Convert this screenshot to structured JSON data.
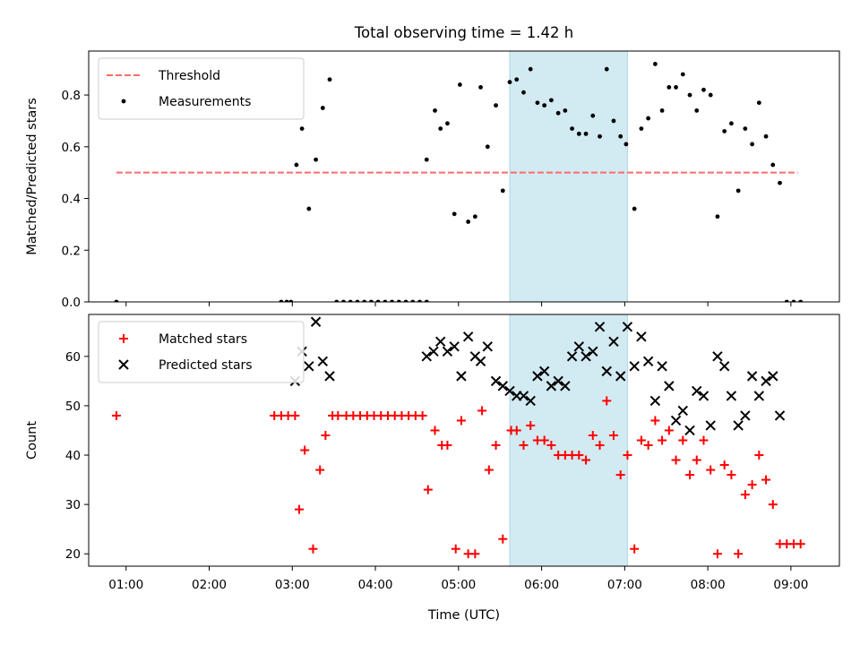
{
  "chart_data": {
    "type": "scatter",
    "title": "Total observing time = 1.42 h",
    "xlabel": "Time (UTC)",
    "xlim": [
      "00:33",
      "09:35"
    ],
    "xticks": [
      "01:00",
      "02:00",
      "03:00",
      "04:00",
      "05:00",
      "06:00",
      "07:00",
      "08:00",
      "09:00"
    ],
    "highlight_span": {
      "start": "05:37",
      "end": "07:02",
      "color": "#add8e6"
    },
    "panels": [
      {
        "ylabel": "Matched/Predicted stars",
        "ylim": [
          0,
          0.97
        ],
        "yticks": [
          "0.0",
          "0.2",
          "0.4",
          "0.6",
          "0.8"
        ],
        "legend": {
          "position": "upper-left",
          "entries": [
            "Threshold",
            "Measurements"
          ]
        },
        "threshold": {
          "name": "Threshold",
          "value": 0.5,
          "start": "00:53",
          "end": "09:05",
          "color": "#ff6b6b"
        },
        "series": [
          {
            "name": "Measurements",
            "marker": "dot",
            "color": "#000000",
            "points": [
              [
                "00:53",
                0
              ],
              [
                "02:52",
                0
              ],
              [
                "02:56",
                0
              ],
              [
                "02:59",
                0
              ],
              [
                "03:03",
                0.53
              ],
              [
                "03:07",
                0.67
              ],
              [
                "03:12",
                0.36
              ],
              [
                "03:17",
                0.55
              ],
              [
                "03:22",
                0.75
              ],
              [
                "03:27",
                0.86
              ],
              [
                "03:32",
                0
              ],
              [
                "03:37",
                0
              ],
              [
                "03:42",
                0
              ],
              [
                "03:47",
                0
              ],
              [
                "03:52",
                0
              ],
              [
                "03:57",
                0
              ],
              [
                "04:02",
                0
              ],
              [
                "04:07",
                0
              ],
              [
                "04:12",
                0
              ],
              [
                "04:17",
                0
              ],
              [
                "04:22",
                0
              ],
              [
                "04:27",
                0
              ],
              [
                "04:32",
                0
              ],
              [
                "04:37",
                0
              ],
              [
                "04:37",
                0.55
              ],
              [
                "04:43",
                0.74
              ],
              [
                "04:47",
                0.67
              ],
              [
                "04:52",
                0.69
              ],
              [
                "04:57",
                0.34
              ],
              [
                "05:01",
                0.84
              ],
              [
                "05:07",
                0.31
              ],
              [
                "05:12",
                0.33
              ],
              [
                "05:16",
                0.83
              ],
              [
                "05:21",
                0.6
              ],
              [
                "05:27",
                0.76
              ],
              [
                "05:32",
                0.43
              ],
              [
                "05:37",
                0.85
              ],
              [
                "05:42",
                0.86
              ],
              [
                "05:47",
                0.81
              ],
              [
                "05:52",
                0.9
              ],
              [
                "05:57",
                0.77
              ],
              [
                "06:02",
                0.76
              ],
              [
                "06:07",
                0.78
              ],
              [
                "06:12",
                0.73
              ],
              [
                "06:17",
                0.74
              ],
              [
                "06:22",
                0.67
              ],
              [
                "06:27",
                0.65
              ],
              [
                "06:32",
                0.65
              ],
              [
                "06:37",
                0.72
              ],
              [
                "06:42",
                0.64
              ],
              [
                "06:47",
                0.9
              ],
              [
                "06:52",
                0.7
              ],
              [
                "06:57",
                0.64
              ],
              [
                "07:01",
                0.61
              ],
              [
                "07:07",
                0.36
              ],
              [
                "07:12",
                0.67
              ],
              [
                "07:17",
                0.71
              ],
              [
                "07:22",
                0.92
              ],
              [
                "07:27",
                0.74
              ],
              [
                "07:32",
                0.83
              ],
              [
                "07:37",
                0.83
              ],
              [
                "07:42",
                0.88
              ],
              [
                "07:47",
                0.8
              ],
              [
                "07:52",
                0.74
              ],
              [
                "07:57",
                0.82
              ],
              [
                "08:02",
                0.8
              ],
              [
                "08:07",
                0.33
              ],
              [
                "08:12",
                0.66
              ],
              [
                "08:17",
                0.69
              ],
              [
                "08:22",
                0.43
              ],
              [
                "08:27",
                0.67
              ],
              [
                "08:32",
                0.61
              ],
              [
                "08:37",
                0.77
              ],
              [
                "08:42",
                0.64
              ],
              [
                "08:47",
                0.53
              ],
              [
                "08:52",
                0.46
              ],
              [
                "08:57",
                0
              ],
              [
                "09:02",
                0
              ],
              [
                "09:07",
                0
              ]
            ]
          }
        ]
      },
      {
        "ylabel": "Count",
        "ylim": [
          17.5,
          68.5
        ],
        "yticks": [
          "20",
          "30",
          "40",
          "50",
          "60"
        ],
        "legend": {
          "position": "upper-left",
          "entries": [
            "Matched stars",
            "Predicted stars"
          ]
        },
        "series": [
          {
            "name": "Matched stars",
            "marker": "plus",
            "color": "#ff0000",
            "points": [
              [
                "00:53",
                48
              ],
              [
                "02:47",
                48
              ],
              [
                "02:52",
                48
              ],
              [
                "02:57",
                48
              ],
              [
                "03:02",
                48
              ],
              [
                "03:05",
                29
              ],
              [
                "03:09",
                41
              ],
              [
                "03:15",
                21
              ],
              [
                "03:20",
                37
              ],
              [
                "03:24",
                44
              ],
              [
                "03:29",
                48
              ],
              [
                "03:33",
                48
              ],
              [
                "03:39",
                48
              ],
              [
                "03:44",
                48
              ],
              [
                "03:49",
                48
              ],
              [
                "03:54",
                48
              ],
              [
                "03:59",
                48
              ],
              [
                "04:04",
                48
              ],
              [
                "04:09",
                48
              ],
              [
                "04:14",
                48
              ],
              [
                "04:19",
                48
              ],
              [
                "04:24",
                48
              ],
              [
                "04:29",
                48
              ],
              [
                "04:34",
                48
              ],
              [
                "04:38",
                33
              ],
              [
                "04:43",
                45
              ],
              [
                "04:48",
                42
              ],
              [
                "04:52",
                42
              ],
              [
                "04:58",
                21
              ],
              [
                "05:02",
                47
              ],
              [
                "05:07",
                20
              ],
              [
                "05:12",
                20
              ],
              [
                "05:17",
                49
              ],
              [
                "05:22",
                37
              ],
              [
                "05:27",
                42
              ],
              [
                "05:32",
                23
              ],
              [
                "05:38",
                45
              ],
              [
                "05:42",
                45
              ],
              [
                "05:47",
                42
              ],
              [
                "05:52",
                46
              ],
              [
                "05:57",
                43
              ],
              [
                "06:02",
                43
              ],
              [
                "06:07",
                42
              ],
              [
                "06:12",
                40
              ],
              [
                "06:17",
                40
              ],
              [
                "06:22",
                40
              ],
              [
                "06:27",
                40
              ],
              [
                "06:32",
                39
              ],
              [
                "06:37",
                44
              ],
              [
                "06:42",
                42
              ],
              [
                "06:47",
                51
              ],
              [
                "06:52",
                44
              ],
              [
                "06:57",
                36
              ],
              [
                "07:02",
                40
              ],
              [
                "07:07",
                21
              ],
              [
                "07:12",
                43
              ],
              [
                "07:17",
                42
              ],
              [
                "07:22",
                47
              ],
              [
                "07:27",
                43
              ],
              [
                "07:32",
                45
              ],
              [
                "07:37",
                39
              ],
              [
                "07:42",
                43
              ],
              [
                "07:47",
                36
              ],
              [
                "07:52",
                39
              ],
              [
                "07:57",
                43
              ],
              [
                "08:02",
                37
              ],
              [
                "08:07",
                20
              ],
              [
                "08:12",
                38
              ],
              [
                "08:17",
                36
              ],
              [
                "08:22",
                20
              ],
              [
                "08:27",
                32
              ],
              [
                "08:32",
                34
              ],
              [
                "08:37",
                40
              ],
              [
                "08:42",
                35
              ],
              [
                "08:47",
                30
              ],
              [
                "08:52",
                22
              ],
              [
                "08:57",
                22
              ],
              [
                "09:02",
                22
              ],
              [
                "09:07",
                22
              ]
            ]
          },
          {
            "name": "Predicted stars",
            "marker": "x",
            "color": "#000000",
            "points": [
              [
                "03:02",
                55
              ],
              [
                "03:07",
                61
              ],
              [
                "03:12",
                58
              ],
              [
                "03:17",
                67
              ],
              [
                "03:22",
                59
              ],
              [
                "03:27",
                56
              ],
              [
                "04:37",
                60
              ],
              [
                "04:42",
                61
              ],
              [
                "04:47",
                63
              ],
              [
                "04:52",
                61
              ],
              [
                "04:57",
                62
              ],
              [
                "05:02",
                56
              ],
              [
                "05:07",
                64
              ],
              [
                "05:12",
                60
              ],
              [
                "05:16",
                59
              ],
              [
                "05:21",
                62
              ],
              [
                "05:27",
                55
              ],
              [
                "05:32",
                54
              ],
              [
                "05:37",
                53
              ],
              [
                "05:42",
                52
              ],
              [
                "05:47",
                52
              ],
              [
                "05:52",
                51
              ],
              [
                "05:57",
                56
              ],
              [
                "06:02",
                57
              ],
              [
                "06:07",
                54
              ],
              [
                "06:12",
                55
              ],
              [
                "06:17",
                54
              ],
              [
                "06:22",
                60
              ],
              [
                "06:27",
                62
              ],
              [
                "06:32",
                60
              ],
              [
                "06:37",
                61
              ],
              [
                "06:42",
                66
              ],
              [
                "06:47",
                57
              ],
              [
                "06:52",
                63
              ],
              [
                "06:57",
                56
              ],
              [
                "07:02",
                66
              ],
              [
                "07:07",
                58
              ],
              [
                "07:12",
                64
              ],
              [
                "07:17",
                59
              ],
              [
                "07:22",
                51
              ],
              [
                "07:27",
                58
              ],
              [
                "07:32",
                54
              ],
              [
                "07:37",
                47
              ],
              [
                "07:42",
                49
              ],
              [
                "07:47",
                45
              ],
              [
                "07:52",
                53
              ],
              [
                "07:57",
                52
              ],
              [
                "08:02",
                46
              ],
              [
                "08:07",
                60
              ],
              [
                "08:12",
                58
              ],
              [
                "08:17",
                52
              ],
              [
                "08:22",
                46
              ],
              [
                "08:27",
                48
              ],
              [
                "08:32",
                56
              ],
              [
                "08:37",
                52
              ],
              [
                "08:42",
                55
              ],
              [
                "08:47",
                56
              ],
              [
                "08:52",
                48
              ]
            ]
          }
        ]
      }
    ]
  }
}
